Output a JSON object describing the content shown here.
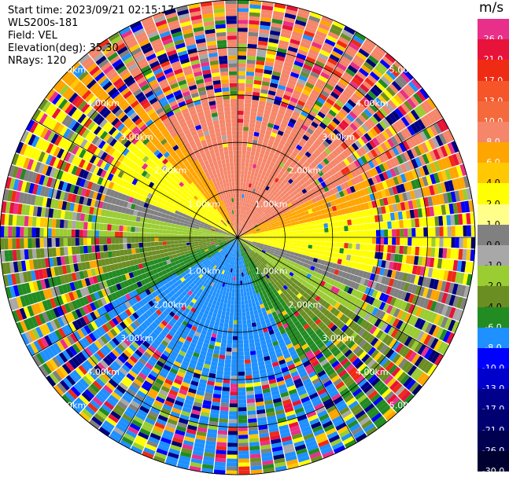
{
  "header": {
    "start_time": "Start time: 2023/09/21 02:15:17",
    "instrument": "WLS200s-181",
    "field": "Field: VEL",
    "elevation": "Elevation(deg): 35.30",
    "nrays": "NRays: 120"
  },
  "colorbar": {
    "title": "m/s",
    "levels": [
      {
        "label": "26.0",
        "color": "#e8308a",
        "text_color": "#ffffff"
      },
      {
        "label": "21.0",
        "color": "#e8133a",
        "text_color": "#ffffff"
      },
      {
        "label": "17.0",
        "color": "#f02b14",
        "text_color": "#ffffff"
      },
      {
        "label": "13.0",
        "color": "#f55528",
        "text_color": "#ffffff"
      },
      {
        "label": "10.0",
        "color": "#f56a3c",
        "text_color": "#ffffff"
      },
      {
        "label": "8.0",
        "color": "#f5866a",
        "text_color": "#ffffff"
      },
      {
        "label": "6.0",
        "color": "#ffa500",
        "text_color": "#ffffff"
      },
      {
        "label": "4.0",
        "color": "#ffc800",
        "text_color": "#000000"
      },
      {
        "label": "2.0",
        "color": "#ffff00",
        "text_color": "#000000"
      },
      {
        "label": "1.0",
        "color": "#ffff8a",
        "text_color": "#000000"
      },
      {
        "label": "0.0",
        "color": "#808080",
        "text_color": "#000000"
      },
      {
        "label": "-1.0",
        "color": "#a8a8a8",
        "text_color": "#000000"
      },
      {
        "label": "-2.0",
        "color": "#9acd32",
        "text_color": "#000000"
      },
      {
        "label": "-4.0",
        "color": "#6b8e23",
        "text_color": "#000000"
      },
      {
        "label": "-6.0",
        "color": "#228b22",
        "text_color": "#ffffff"
      },
      {
        "label": "-8.0",
        "color": "#1e90ff",
        "text_color": "#ffffff"
      },
      {
        "label": "-10.0",
        "color": "#0000ff",
        "text_color": "#ffffff"
      },
      {
        "label": "-13.0",
        "color": "#0000cd",
        "text_color": "#ffffff"
      },
      {
        "label": "-17.0",
        "color": "#00008b",
        "text_color": "#ffffff"
      },
      {
        "label": "-21.0",
        "color": "#000070",
        "text_color": "#ffffff"
      },
      {
        "label": "-26.0",
        "color": "#000050",
        "text_color": "#ffffff"
      },
      {
        "label": "-30.0",
        "color": "#000030",
        "text_color": "#ffffff"
      }
    ]
  },
  "range_rings": {
    "unit": "km",
    "labels": [
      "1.00km",
      "2.00km",
      "3.00km",
      "4.00km",
      "5.00km"
    ]
  }
}
